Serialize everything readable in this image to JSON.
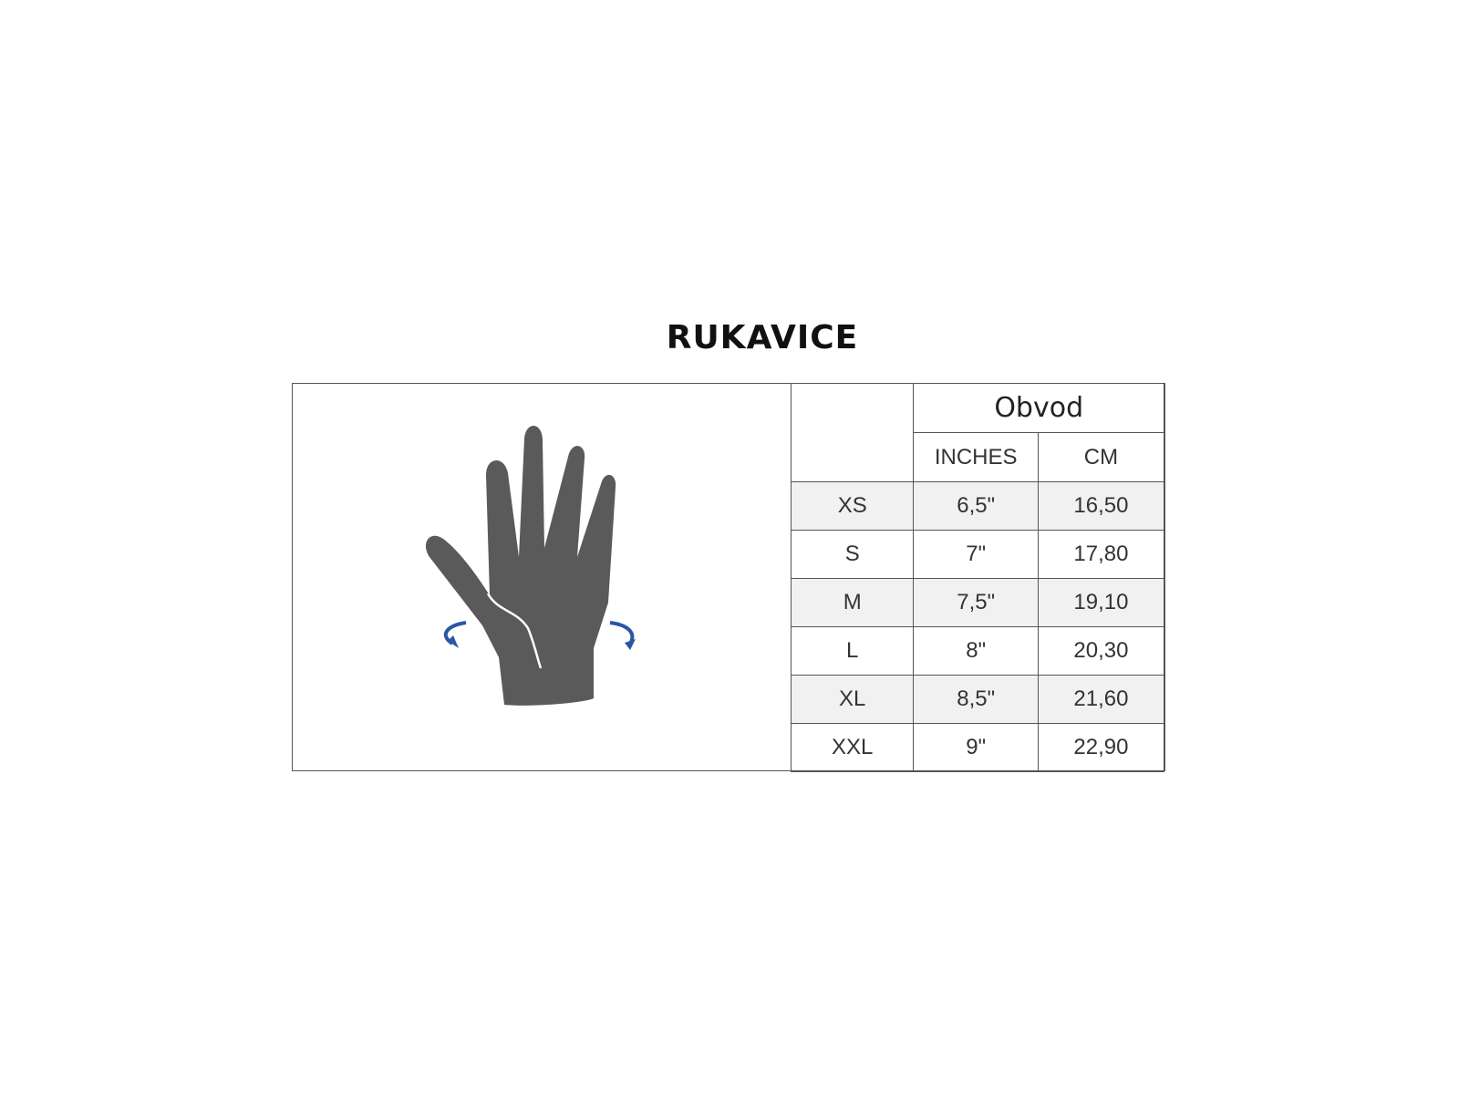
{
  "title": "RUKAVICE",
  "table": {
    "group_header": "Obvod",
    "columns": [
      "INCHES",
      "CM"
    ],
    "rows": [
      {
        "size": "XS",
        "inches": "6,5\"",
        "cm": "16,50"
      },
      {
        "size": "S",
        "inches": "7\"",
        "cm": "17,80"
      },
      {
        "size": "M",
        "inches": "7,5\"",
        "cm": "19,10"
      },
      {
        "size": "L",
        "inches": "8\"",
        "cm": "20,30"
      },
      {
        "size": "XL",
        "inches": "8,5\"",
        "cm": "21,60"
      },
      {
        "size": "XXL",
        "inches": "9\"",
        "cm": "22,90"
      }
    ]
  },
  "illustration": {
    "icon": "hand-measurement-icon",
    "hand_color": "#5a5a5a",
    "arrow_color": "#2a56a8"
  }
}
